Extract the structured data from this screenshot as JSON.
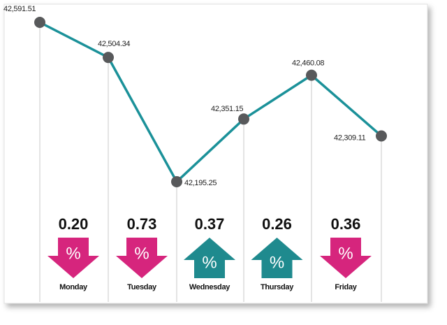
{
  "chart_data": {
    "type": "line",
    "values": [
      42591.51,
      42504.34,
      42195.25,
      42351.15,
      42460.08,
      42309.11
    ],
    "value_labels": [
      "42,591.51",
      "42,504.34",
      "42,195.25",
      "42,351.15",
      "42,460.08",
      "42,309.11"
    ],
    "line_color": "#1b9199",
    "point_color": "#58595b",
    "changes": {
      "days": [
        "Monday",
        "Tuesday",
        "Wednesday",
        "Thursday",
        "Friday"
      ],
      "values": [
        0.2,
        0.73,
        0.37,
        0.26,
        0.36
      ],
      "value_labels": [
        "0.20",
        "0.73",
        "0.37",
        "0.26",
        "0.36"
      ],
      "directions": [
        "down",
        "down",
        "up",
        "up",
        "down"
      ],
      "unit": "%",
      "up_color": "#1f8a8e",
      "down_color": "#d6257d"
    }
  }
}
